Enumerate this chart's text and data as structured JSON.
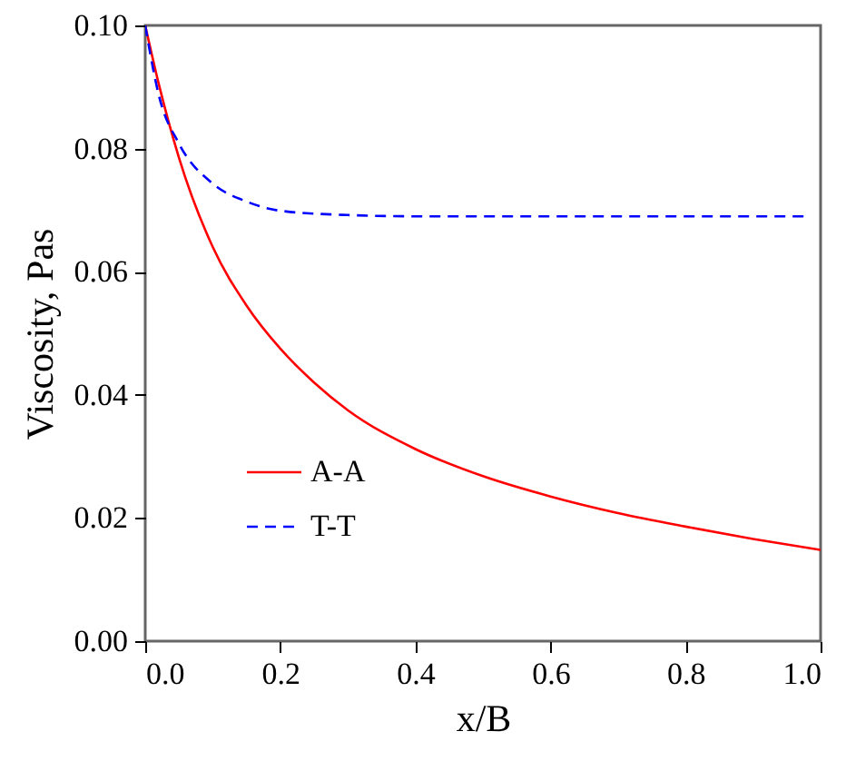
{
  "chart_data": {
    "type": "line",
    "xlabel": "x/B",
    "ylabel": "Viscosity, Pas",
    "xlim": [
      0,
      1
    ],
    "ylim": [
      0,
      0.1
    ],
    "xticks": [
      {
        "value": 0,
        "label": "0.0"
      },
      0.2,
      0.4,
      0.6,
      0.8,
      {
        "value": 1,
        "label": "1.0"
      }
    ],
    "yticks": [
      {
        "value": 0,
        "label": "0.00"
      },
      0.02,
      0.04,
      0.06,
      0.08,
      {
        "value": 0.1,
        "label": "0.10"
      }
    ],
    "grid": false,
    "legend": "bottom left",
    "marker": "none",
    "series": [
      {
        "name": "A-A",
        "color": "#ff0000",
        "line_style": "solid",
        "x": [
          0,
          0.02,
          0.05,
          0.1,
          0.15,
          0.2,
          0.25,
          0.3,
          0.4,
          0.5,
          0.6,
          0.7,
          0.8,
          0.9,
          1.0
        ],
        "values": [
          0.1,
          0.0905,
          0.0785,
          0.064,
          0.0545,
          0.0475,
          0.042,
          0.0375,
          0.0312,
          0.0268,
          0.0235,
          0.0208,
          0.0186,
          0.0166,
          0.0148
        ]
      },
      {
        "name": "T-T",
        "color": "#0000ff",
        "line_style": "dashed",
        "x": [
          0,
          0.02,
          0.05,
          0.1,
          0.15,
          0.2,
          0.3,
          0.4,
          0.6,
          0.8,
          0.98
        ],
        "values": [
          0.1,
          0.0887,
          0.0808,
          0.0743,
          0.0714,
          0.0699,
          0.0692,
          0.069,
          0.069,
          0.069,
          0.069
        ]
      }
    ]
  }
}
